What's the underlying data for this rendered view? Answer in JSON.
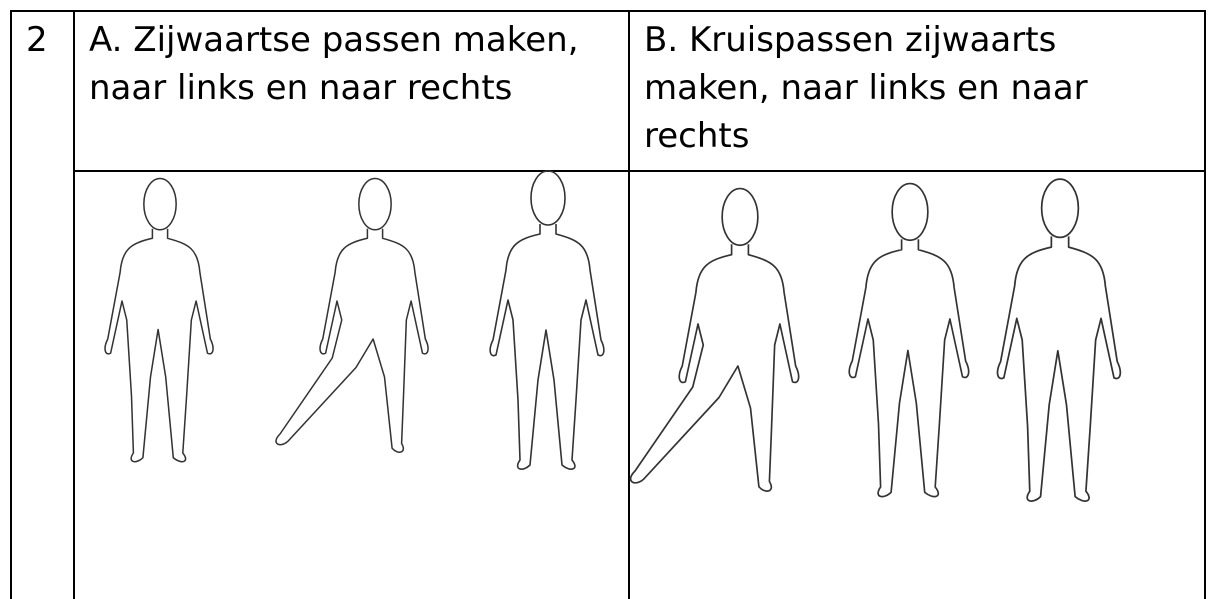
{
  "table": {
    "rows": [
      [
        "2",
        "A. Zijwaartse passen maken, naar links en naar rechts",
        "B. Kruispassen zijwaarts maken, naar links en naar rechts"
      ]
    ]
  }
}
